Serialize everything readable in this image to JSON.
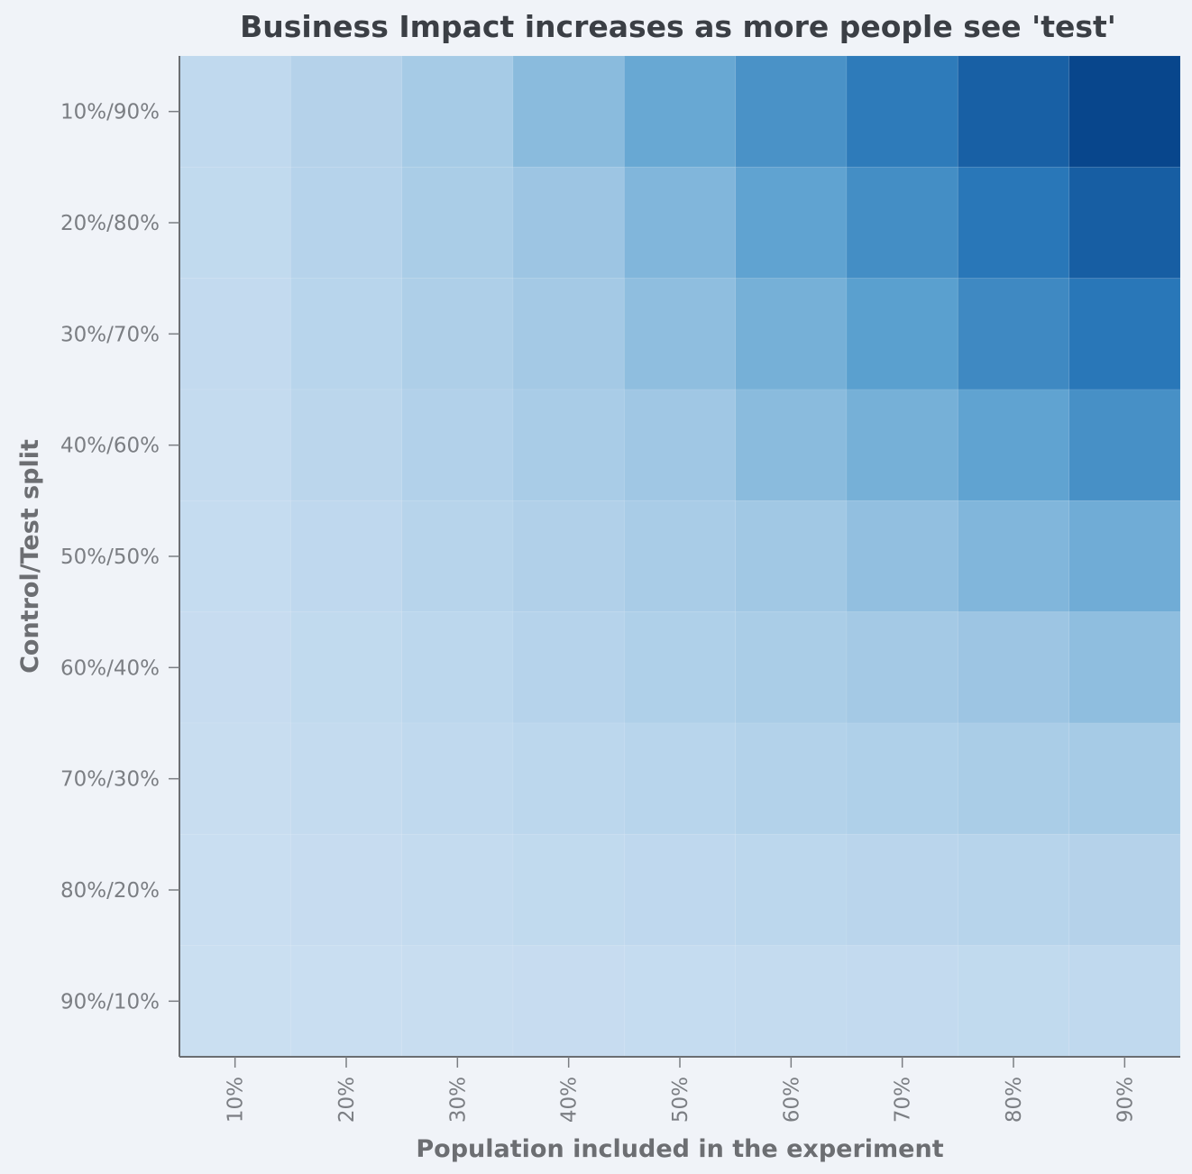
{
  "chart_data": {
    "type": "heatmap",
    "title": "Business Impact increases as more people see 'test'",
    "xlabel": "Population included in the experiment",
    "ylabel": "Control/Test split",
    "x_categories": [
      "10%",
      "20%",
      "30%",
      "40%",
      "50%",
      "60%",
      "70%",
      "80%",
      "90%"
    ],
    "y_categories": [
      "10%/90%",
      "20%/80%",
      "30%/70%",
      "40%/60%",
      "50%/50%",
      "60%/40%",
      "70%/30%",
      "80%/20%",
      "90%/10%"
    ],
    "values": [
      [
        0.1,
        0.19,
        0.3,
        0.43,
        0.55,
        0.66,
        0.76,
        0.88,
        1.0
      ],
      [
        0.09,
        0.18,
        0.27,
        0.36,
        0.46,
        0.58,
        0.68,
        0.78,
        0.89
      ],
      [
        0.08,
        0.16,
        0.24,
        0.32,
        0.41,
        0.5,
        0.6,
        0.7,
        0.78
      ],
      [
        0.07,
        0.14,
        0.21,
        0.28,
        0.35,
        0.43,
        0.5,
        0.58,
        0.67
      ],
      [
        0.06,
        0.11,
        0.17,
        0.22,
        0.28,
        0.34,
        0.4,
        0.46,
        0.52
      ],
      [
        0.05,
        0.09,
        0.13,
        0.18,
        0.23,
        0.27,
        0.32,
        0.36,
        0.41
      ],
      [
        0.04,
        0.07,
        0.1,
        0.13,
        0.16,
        0.2,
        0.23,
        0.27,
        0.3
      ],
      [
        0.03,
        0.05,
        0.07,
        0.09,
        0.11,
        0.13,
        0.15,
        0.17,
        0.19
      ],
      [
        0.02,
        0.03,
        0.04,
        0.05,
        0.06,
        0.07,
        0.08,
        0.09,
        0.1
      ]
    ],
    "color_scale": {
      "low": "#cde0f2",
      "high": "#08468c"
    },
    "grid": false,
    "legend": "none"
  }
}
